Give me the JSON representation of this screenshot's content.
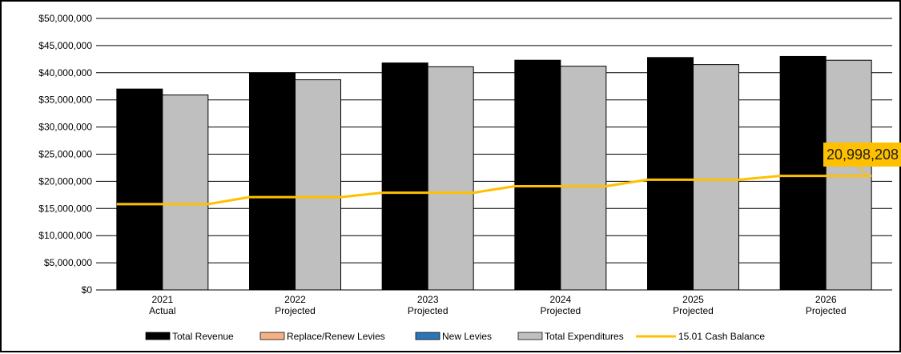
{
  "chart_data": {
    "type": "bar",
    "categories": [
      {
        "line1": "2021",
        "line2": "Actual"
      },
      {
        "line1": "2022",
        "line2": "Projected"
      },
      {
        "line1": "2023",
        "line2": "Projected"
      },
      {
        "line1": "2024",
        "line2": "Projected"
      },
      {
        "line1": "2025",
        "line2": "Projected"
      },
      {
        "line1": "2026",
        "line2": "Projected"
      }
    ],
    "ylim": [
      0,
      50000000
    ],
    "y_ticks": [
      {
        "value": 0,
        "label": "$0"
      },
      {
        "value": 5000000,
        "label": "$5,000,000"
      },
      {
        "value": 10000000,
        "label": "$10,000,000"
      },
      {
        "value": 15000000,
        "label": "$15,000,000"
      },
      {
        "value": 20000000,
        "label": "$20,000,000"
      },
      {
        "value": 25000000,
        "label": "$25,000,000"
      },
      {
        "value": 30000000,
        "label": "$30,000,000"
      },
      {
        "value": 35000000,
        "label": "$35,000,000"
      },
      {
        "value": 40000000,
        "label": "$40,000,000"
      },
      {
        "value": 45000000,
        "label": "$45,000,000"
      },
      {
        "value": 50000000,
        "label": "$50,000,000"
      }
    ],
    "grid": true,
    "legend_position": "bottom",
    "series": [
      {
        "name": "Total Revenue",
        "kind": "bar",
        "color": "#000000",
        "values": [
          37000000,
          40000000,
          41800000,
          42300000,
          42800000,
          43000000
        ]
      },
      {
        "name": "Replace/Renew Levies",
        "kind": "bar",
        "color": "#f4b183",
        "values": [
          0,
          0,
          0,
          0,
          0,
          0
        ]
      },
      {
        "name": "New Levies",
        "kind": "bar",
        "color": "#2e75b6",
        "values": [
          0,
          0,
          0,
          0,
          0,
          0
        ]
      },
      {
        "name": "Total Expenditures",
        "kind": "bar",
        "color": "#bfbfbf",
        "values": [
          35900000,
          38700000,
          41100000,
          41200000,
          41500000,
          42300000
        ]
      },
      {
        "name": "15.01 Cash Balance",
        "kind": "line",
        "color": "#ffc000",
        "values": [
          15800000,
          17100000,
          17900000,
          19100000,
          20300000,
          20998208
        ]
      }
    ],
    "annotation": {
      "text": "20,998,208",
      "series": "15.01 Cash Balance",
      "category_index": 5,
      "color": "#ffc000"
    }
  }
}
